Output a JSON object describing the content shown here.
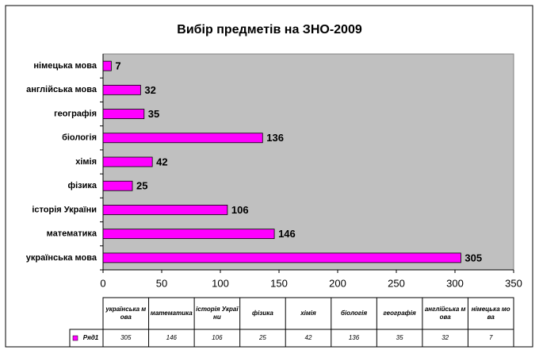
{
  "chart_data": {
    "type": "bar",
    "orientation": "horizontal",
    "title": "Вибір предметів на ЗНО-2009",
    "categories": [
      "українська мова",
      "математика",
      "історія України",
      "фізика",
      "хімія",
      "біологія",
      "географія",
      "англійська мова",
      "німецька мова"
    ],
    "series": [
      {
        "name": "Ряд1",
        "color": "#ff00ff",
        "values": [
          305,
          146,
          106,
          25,
          42,
          136,
          35,
          32,
          7
        ]
      }
    ],
    "xlim": [
      0,
      350
    ],
    "xticks": [
      0,
      50,
      100,
      150,
      200,
      250,
      300,
      350
    ],
    "data_table": true,
    "plot_background": "#c0c0c0"
  }
}
